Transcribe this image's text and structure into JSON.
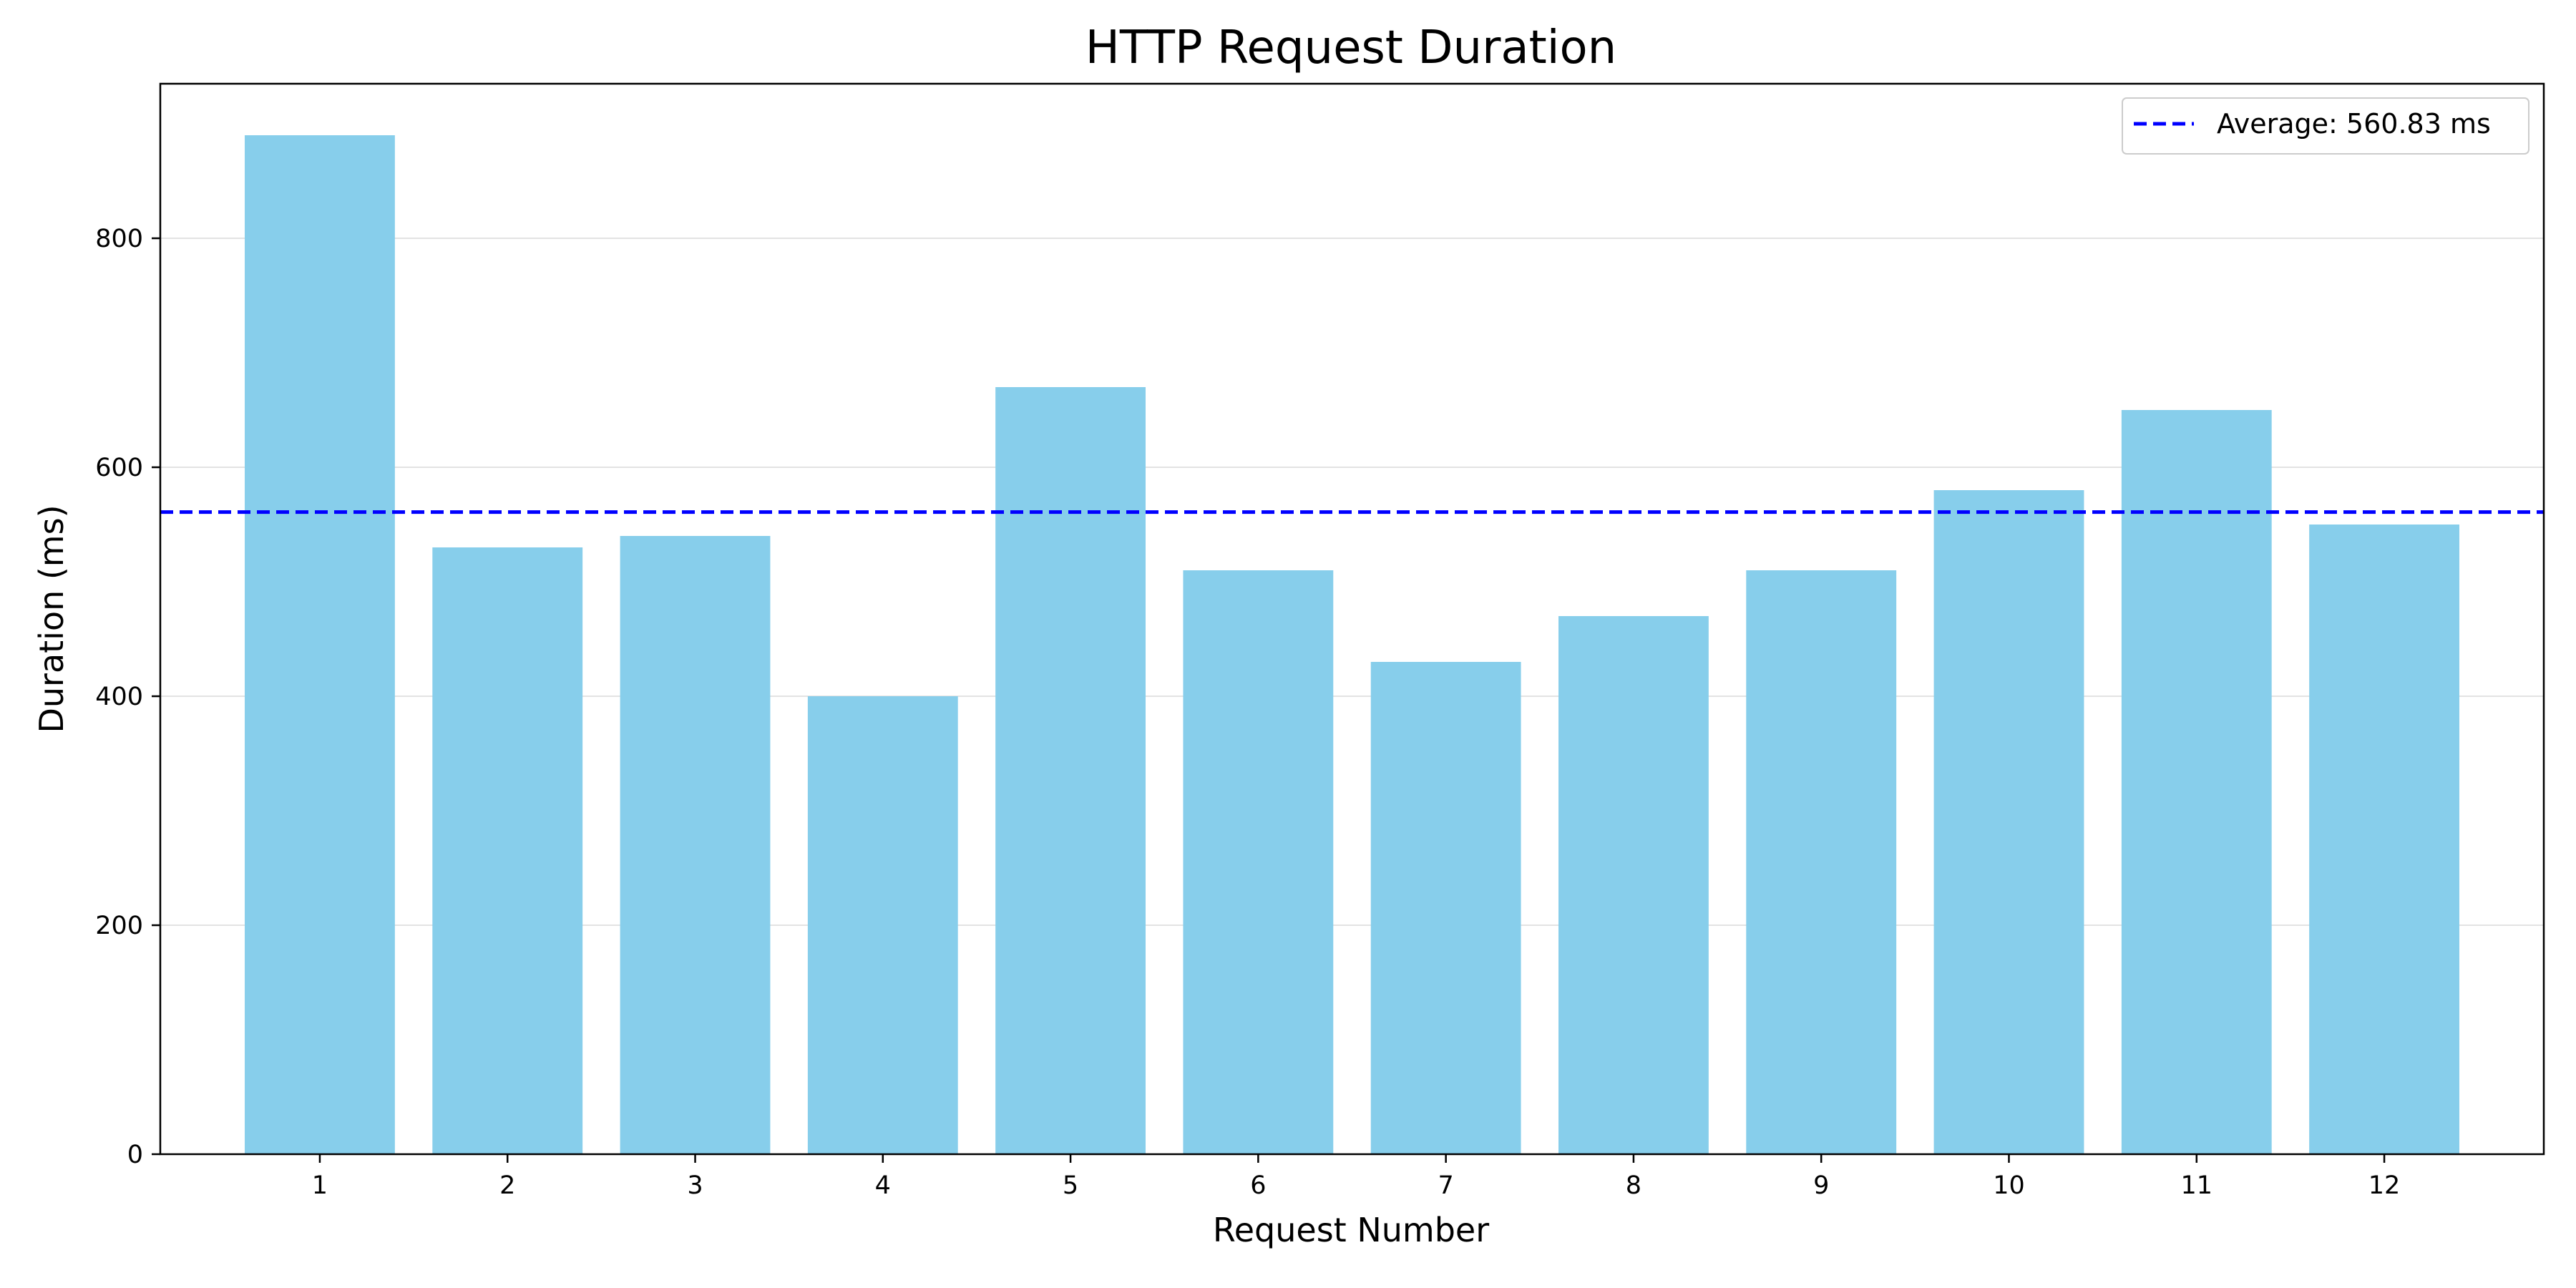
{
  "chart_data": {
    "type": "bar",
    "title": "HTTP Request Duration",
    "xlabel": "Request Number",
    "ylabel": "Duration (ms)",
    "categories": [
      "1",
      "2",
      "3",
      "4",
      "5",
      "6",
      "7",
      "8",
      "9",
      "10",
      "11",
      "12"
    ],
    "values": [
      890,
      530,
      540,
      400,
      670,
      510,
      430,
      470,
      510,
      580,
      650,
      550
    ],
    "ylim": [
      0,
      935
    ],
    "yticks": [
      0,
      200,
      400,
      600,
      800
    ],
    "grid": "horizontal",
    "bar_color": "#87CEEB",
    "reference_line": {
      "value": 560.83,
      "label": "Average: 560.83 ms",
      "color": "#0000ff",
      "style": "dashed"
    },
    "legend": {
      "placement": "top-right",
      "entries": [
        "Average: 560.83 ms"
      ]
    }
  }
}
